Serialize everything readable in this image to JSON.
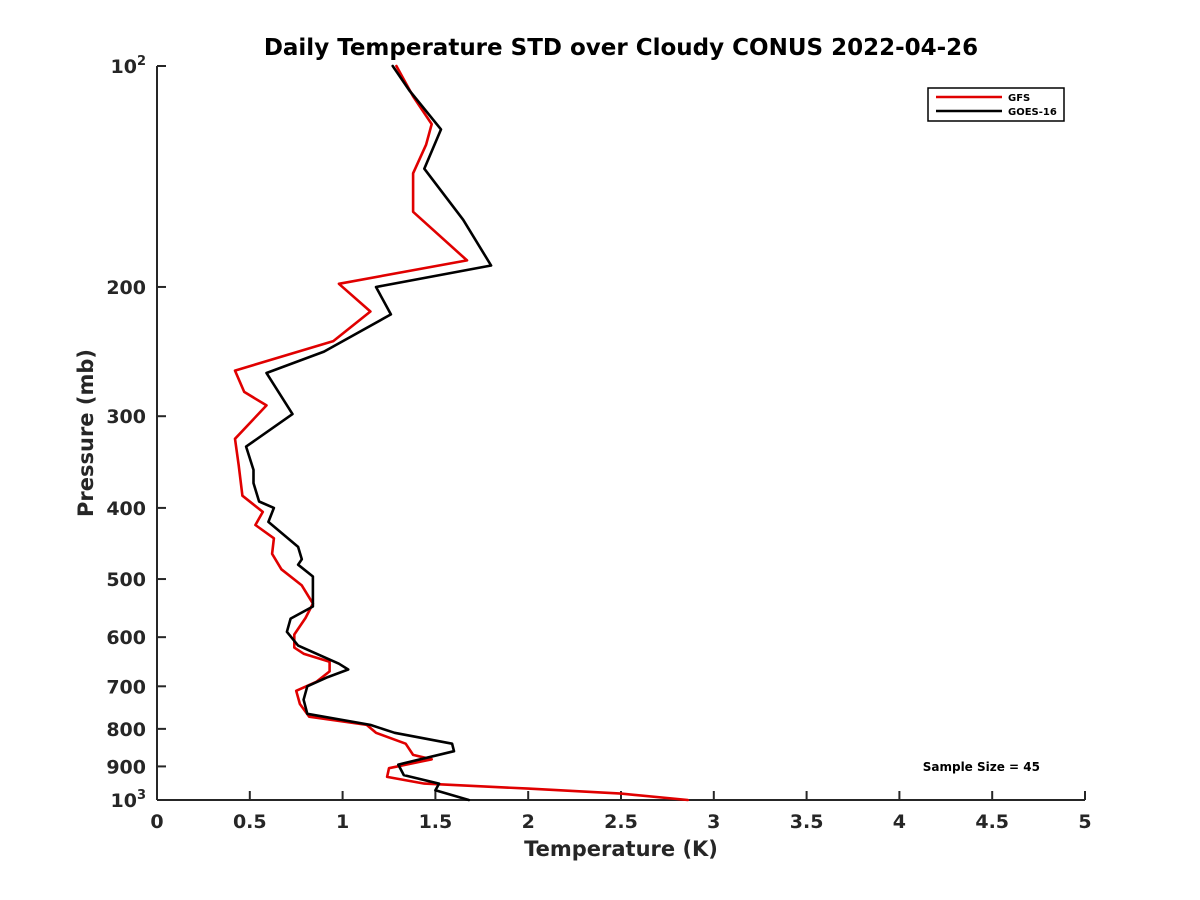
{
  "chart_data": {
    "type": "line",
    "title": "Daily Temperature STD over Cloudy CONUS 2022-04-26",
    "xlabel": "Temperature (K)",
    "ylabel": "Pressure (mb)",
    "xlim": [
      0,
      5
    ],
    "ylim": [
      100,
      1000
    ],
    "y_scale": "log",
    "y_reversed": true,
    "grid": false,
    "legend_position": "top-right",
    "x_ticks": [
      0,
      0.5,
      1,
      1.5,
      2,
      2.5,
      3,
      3.5,
      4,
      4.5,
      5
    ],
    "x_tick_labels": [
      "0",
      "0.5",
      "1",
      "1.5",
      "2",
      "2.5",
      "3",
      "3.5",
      "4",
      "4.5",
      "5"
    ],
    "y_ticks": [
      100,
      200,
      300,
      400,
      500,
      600,
      700,
      800,
      900,
      1000
    ],
    "y_tick_labels": [
      {
        "base": "10",
        "exp": "2"
      },
      {
        "base": "200",
        "exp": ""
      },
      {
        "base": "300",
        "exp": ""
      },
      {
        "base": "400",
        "exp": ""
      },
      {
        "base": "500",
        "exp": ""
      },
      {
        "base": "600",
        "exp": ""
      },
      {
        "base": "700",
        "exp": ""
      },
      {
        "base": "800",
        "exp": ""
      },
      {
        "base": "900",
        "exp": ""
      },
      {
        "base": "10",
        "exp": "3"
      }
    ],
    "annotation": "Sample Size = 45",
    "series": [
      {
        "name": "GFS",
        "color": "#e00000",
        "points": [
          [
            1.29,
            100
          ],
          [
            1.38,
            110
          ],
          [
            1.48,
            120
          ],
          [
            1.45,
            128
          ],
          [
            1.38,
            140
          ],
          [
            1.38,
            158
          ],
          [
            1.67,
            184
          ],
          [
            0.98,
            198
          ],
          [
            1.15,
            216
          ],
          [
            0.95,
            237
          ],
          [
            0.42,
            260
          ],
          [
            0.47,
            278
          ],
          [
            0.59,
            290
          ],
          [
            0.42,
            322
          ],
          [
            0.44,
            350
          ],
          [
            0.46,
            385
          ],
          [
            0.57,
            405
          ],
          [
            0.53,
            422
          ],
          [
            0.63,
            440
          ],
          [
            0.62,
            462
          ],
          [
            0.67,
            485
          ],
          [
            0.78,
            510
          ],
          [
            0.84,
            540
          ],
          [
            0.8,
            565
          ],
          [
            0.74,
            595
          ],
          [
            0.74,
            620
          ],
          [
            0.79,
            632
          ],
          [
            0.93,
            648
          ],
          [
            0.93,
            668
          ],
          [
            0.86,
            690
          ],
          [
            0.75,
            710
          ],
          [
            0.77,
            740
          ],
          [
            0.82,
            770
          ],
          [
            1.13,
            790
          ],
          [
            1.18,
            810
          ],
          [
            1.34,
            838
          ],
          [
            1.38,
            868
          ],
          [
            1.48,
            880
          ],
          [
            1.25,
            905
          ],
          [
            1.24,
            930
          ],
          [
            1.44,
            950
          ],
          [
            2.0,
            965
          ],
          [
            2.5,
            980
          ],
          [
            2.86,
            1000
          ]
        ]
      },
      {
        "name": "GOES-16",
        "color": "#000000",
        "points": [
          [
            1.27,
            100
          ],
          [
            1.36,
            108
          ],
          [
            1.53,
            122
          ],
          [
            1.44,
            138
          ],
          [
            1.65,
            162
          ],
          [
            1.8,
            187
          ],
          [
            1.18,
            200
          ],
          [
            1.26,
            218
          ],
          [
            0.9,
            245
          ],
          [
            0.59,
            262
          ],
          [
            0.73,
            298
          ],
          [
            0.48,
            330
          ],
          [
            0.52,
            355
          ],
          [
            0.52,
            370
          ],
          [
            0.55,
            392
          ],
          [
            0.63,
            400
          ],
          [
            0.6,
            418
          ],
          [
            0.76,
            452
          ],
          [
            0.78,
            470
          ],
          [
            0.76,
            478
          ],
          [
            0.84,
            496
          ],
          [
            0.84,
            545
          ],
          [
            0.72,
            566
          ],
          [
            0.7,
            590
          ],
          [
            0.76,
            616
          ],
          [
            0.98,
            652
          ],
          [
            1.03,
            664
          ],
          [
            0.92,
            680
          ],
          [
            0.81,
            700
          ],
          [
            0.79,
            730
          ],
          [
            0.81,
            763
          ],
          [
            1.15,
            790
          ],
          [
            1.28,
            810
          ],
          [
            1.59,
            838
          ],
          [
            1.6,
            858
          ],
          [
            1.3,
            895
          ],
          [
            1.33,
            925
          ],
          [
            1.52,
            950
          ],
          [
            1.5,
            970
          ],
          [
            1.68,
            1000
          ]
        ]
      }
    ]
  }
}
